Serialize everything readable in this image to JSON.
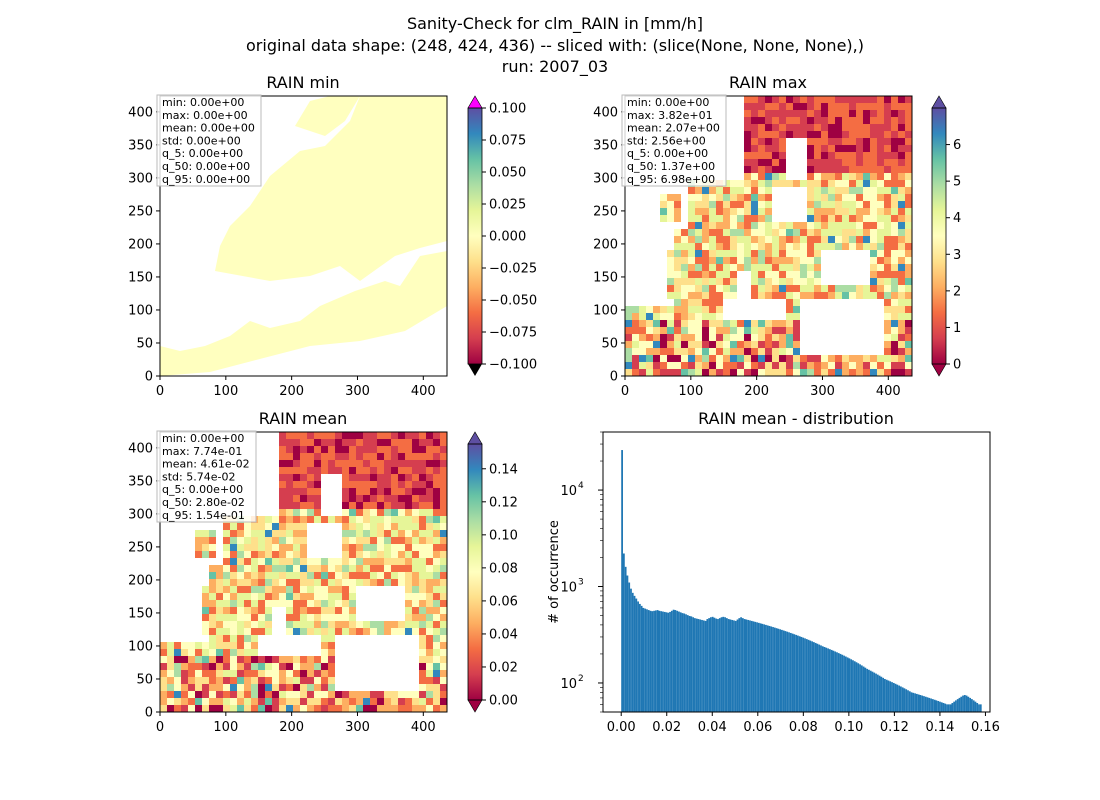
{
  "suptitle": [
    "Sanity-Check for clm_RAIN in [mm/h]",
    "original data shape: (248, 424, 436) -- sliced with: (slice(None, None, None),)",
    "run: 2007_03"
  ],
  "colormap_stops": [
    "#9e0142",
    "#d53e4f",
    "#f46d43",
    "#fdae61",
    "#fee08b",
    "#ffffbf",
    "#e6f598",
    "#abdda4",
    "#66c2a5",
    "#3288bd",
    "#5e4fa2"
  ],
  "map_axes": {
    "x_ticks": [
      "0",
      "100",
      "200",
      "300",
      "400"
    ],
    "y_ticks": [
      "0",
      "50",
      "100",
      "150",
      "200",
      "250",
      "300",
      "350",
      "400"
    ],
    "xlim": [
      0,
      436
    ],
    "ylim": [
      0,
      424
    ]
  },
  "panels": {
    "min": {
      "title": "RAIN min",
      "fill": "#ffffbf",
      "stats": [
        "min: 0.00e+00",
        "max: 0.00e+00",
        "mean: 0.00e+00",
        "std: 0.00e+00",
        "q_5: 0.00e+00",
        "q_50: 0.00e+00",
        "q_95: 0.00e+00"
      ],
      "cbar_ticks": [
        "0.100",
        "0.075",
        "0.050",
        "0.025",
        "0.000",
        "−0.025",
        "−0.050",
        "−0.075",
        "−0.100"
      ],
      "cbar_range": [
        -0.1,
        0.1
      ],
      "over_color": "#ff00ff",
      "under_color": "#000000"
    },
    "max": {
      "title": "RAIN max",
      "stats": [
        "min: 0.00e+00",
        "max: 3.82e+01",
        "mean: 2.07e+00",
        "std: 2.56e+00",
        "q_5: 0.00e+00",
        "q_50: 1.37e+00",
        "q_95: 6.98e+00"
      ],
      "cbar_ticks": [
        "6",
        "5",
        "4",
        "3",
        "2",
        "1",
        "0"
      ],
      "cbar_range": [
        0,
        7
      ]
    },
    "mean": {
      "title": "RAIN mean",
      "stats": [
        "min: 0.00e+00",
        "max: 7.74e-01",
        "mean: 4.61e-02",
        "std: 5.74e-02",
        "q_5: 0.00e+00",
        "q_50: 2.80e-02",
        "q_95: 1.54e-01"
      ],
      "cbar_ticks": [
        "0.14",
        "0.12",
        "0.10",
        "0.08",
        "0.06",
        "0.04",
        "0.02",
        "0.00"
      ],
      "cbar_range": [
        0,
        0.155
      ]
    }
  },
  "chart_data": {
    "type": "bar",
    "title": "RAIN mean - distribution",
    "xlabel": "",
    "ylabel": "# of occurrence",
    "yscale": "log",
    "xlim": [
      -0.008,
      0.162
    ],
    "ylim": [
      50,
      40000
    ],
    "x_ticks": [
      "0.00",
      "0.02",
      "0.04",
      "0.06",
      "0.08",
      "0.10",
      "0.12",
      "0.14",
      "0.16"
    ],
    "y_ticks": [
      "10^2",
      "10^3",
      "10^4"
    ],
    "bar_color": "#1f77b4",
    "x_start": 0.0,
    "bin_width": 0.00078,
    "values": [
      26000,
      2200,
      1600,
      1300,
      1100,
      950,
      860,
      800,
      750,
      700,
      660,
      630,
      600,
      590,
      580,
      570,
      560,
      555,
      560,
      565,
      570,
      560,
      555,
      550,
      545,
      540,
      535,
      545,
      560,
      575,
      570,
      560,
      550,
      540,
      530,
      525,
      515,
      505,
      495,
      490,
      480,
      470,
      465,
      460,
      455,
      450,
      445,
      440,
      460,
      470,
      480,
      485,
      475,
      465,
      460,
      470,
      480,
      485,
      480,
      470,
      460,
      455,
      450,
      445,
      440,
      455,
      470,
      480,
      470,
      460,
      455,
      450,
      445,
      440,
      435,
      430,
      425,
      420,
      415,
      410,
      405,
      400,
      395,
      390,
      385,
      380,
      375,
      370,
      365,
      360,
      355,
      350,
      345,
      340,
      335,
      330,
      325,
      320,
      315,
      310,
      305,
      300,
      295,
      290,
      285,
      280,
      275,
      270,
      265,
      260,
      255,
      250,
      245,
      240,
      236,
      232,
      228,
      224,
      220,
      216,
      212,
      208,
      204,
      200,
      196,
      192,
      188,
      184,
      180,
      176,
      172,
      168,
      164,
      160,
      156,
      152,
      148,
      144,
      140,
      137,
      134,
      131,
      128,
      125,
      122,
      119,
      116,
      113,
      110,
      108,
      106,
      104,
      102,
      100,
      98,
      96,
      94,
      92,
      90,
      88,
      86,
      84,
      82,
      80,
      79,
      78,
      77,
      76,
      75,
      74,
      73,
      72,
      71,
      70,
      69,
      68,
      67,
      66,
      65,
      64,
      63,
      62,
      61,
      60,
      60,
      60,
      62,
      64,
      66,
      68,
      70,
      72,
      74,
      75,
      74,
      72,
      70,
      68,
      66,
      64,
      62,
      60,
      60
    ]
  }
}
